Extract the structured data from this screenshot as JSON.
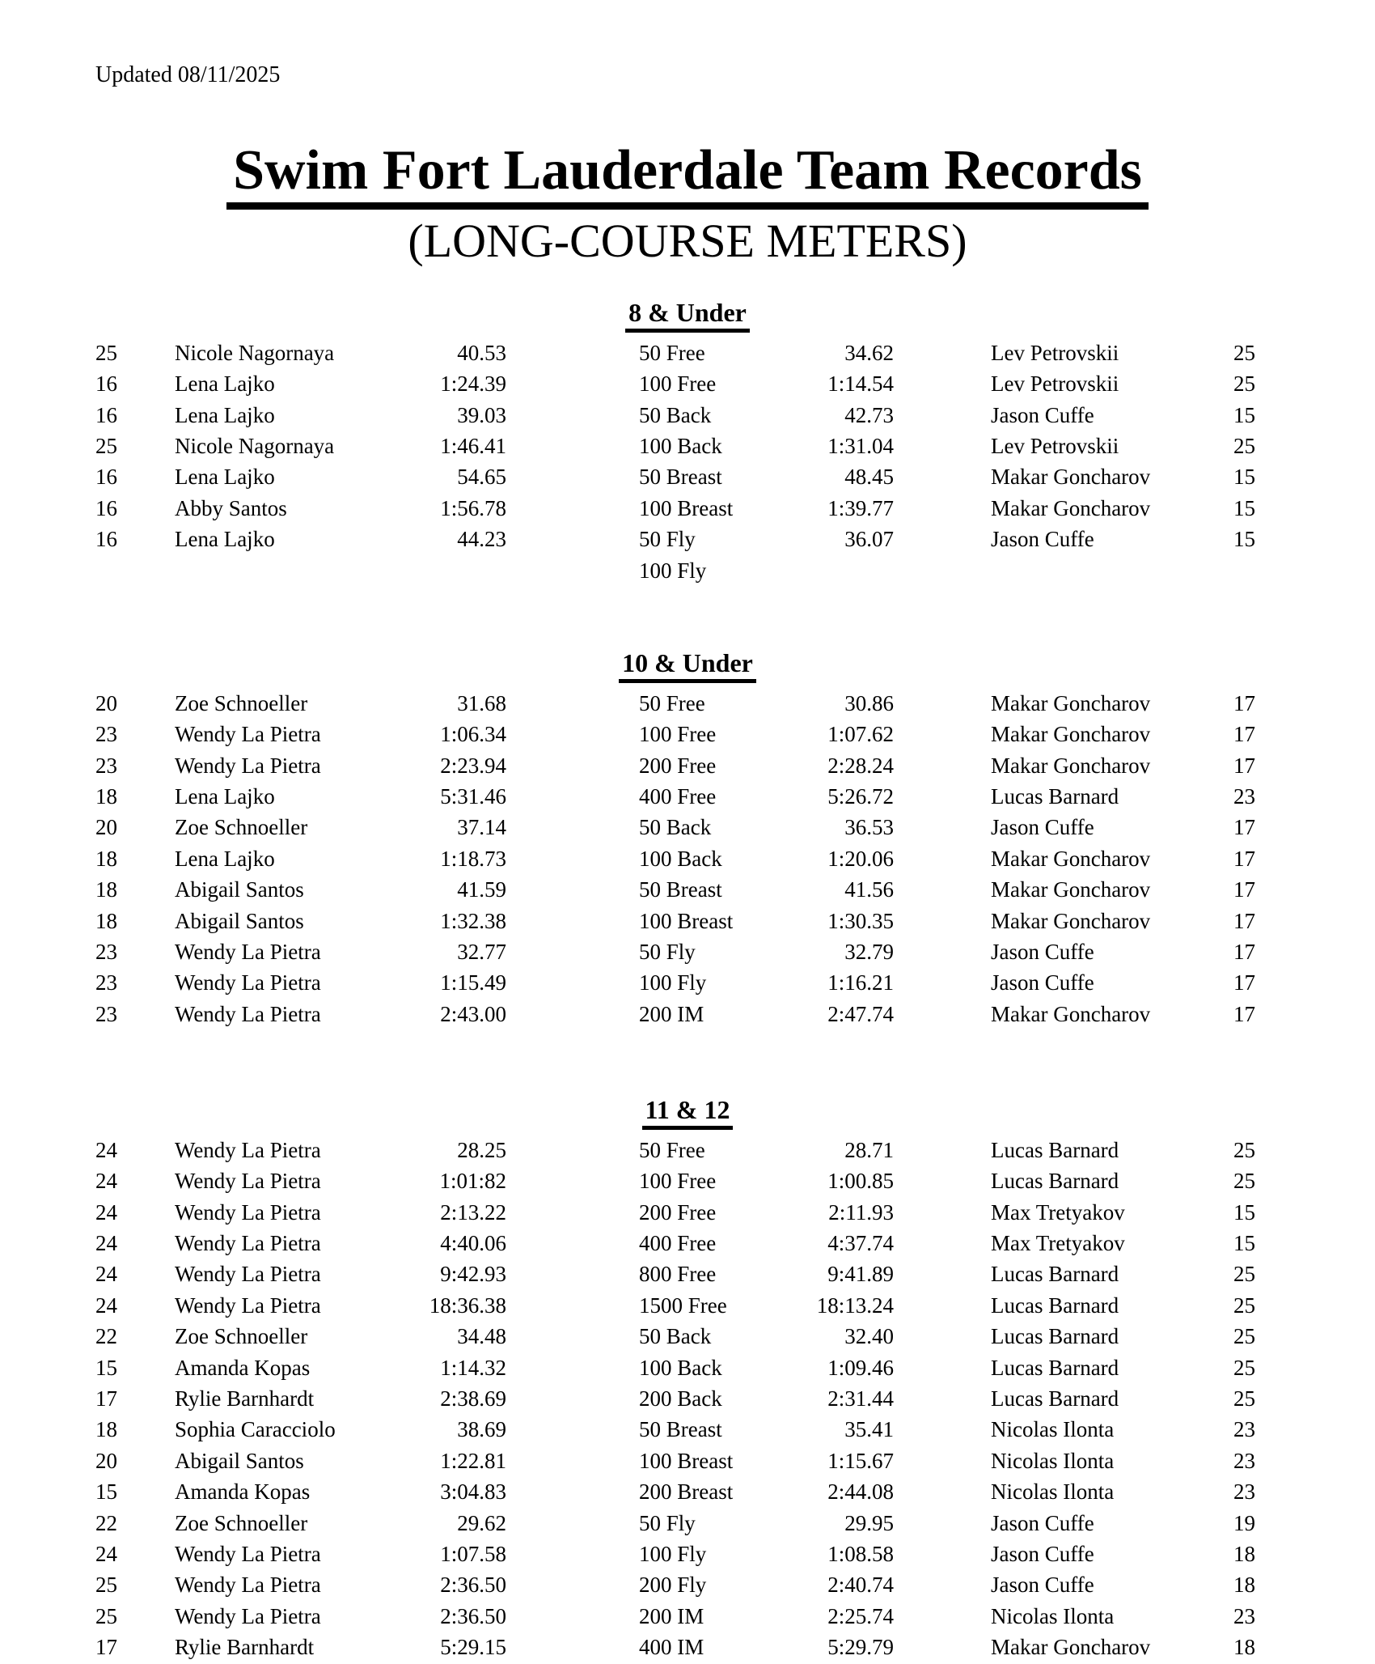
{
  "document": {
    "updated": "Updated 08/11/2025",
    "title": "Swim Fort Lauderdale Team Records",
    "subtitle": "(LONG-COURSE METERS)"
  },
  "column_roles": [
    "girl_record_year",
    "girl_name",
    "girl_time",
    "event",
    "boy_time",
    "boy_name",
    "boy_record_year"
  ],
  "sections": [
    {
      "heading": "8 & Under",
      "rows": [
        [
          "25",
          "Nicole Nagornaya",
          "40.53",
          "50 Free",
          "34.62",
          "Lev Petrovskii",
          "25"
        ],
        [
          "16",
          "Lena Lajko",
          "1:24.39",
          "100 Free",
          "1:14.54",
          "Lev Petrovskii",
          "25"
        ],
        [
          "16",
          "Lena Lajko",
          "39.03",
          "50 Back",
          "42.73",
          "Jason Cuffe",
          "15"
        ],
        [
          "25",
          "Nicole Nagornaya",
          "1:46.41",
          "100 Back",
          "1:31.04",
          "Lev Petrovskii",
          "25"
        ],
        [
          "16",
          "Lena Lajko",
          "54.65",
          "50 Breast",
          "48.45",
          "Makar Goncharov",
          "15"
        ],
        [
          "16",
          "Abby Santos",
          "1:56.78",
          "100 Breast",
          "1:39.77",
          "Makar Goncharov",
          "15"
        ],
        [
          "16",
          "Lena Lajko",
          "44.23",
          "50 Fly",
          "36.07",
          "Jason Cuffe",
          "15"
        ],
        [
          "",
          "",
          "",
          "100 Fly",
          "",
          "",
          ""
        ]
      ]
    },
    {
      "heading": "10 & Under",
      "rows": [
        [
          "20",
          "Zoe Schnoeller",
          "31.68",
          "50 Free",
          "30.86",
          "Makar Goncharov",
          "17"
        ],
        [
          "23",
          "Wendy La Pietra",
          "1:06.34",
          "100 Free",
          "1:07.62",
          "Makar Goncharov",
          "17"
        ],
        [
          "23",
          "Wendy La Pietra",
          "2:23.94",
          "200 Free",
          "2:28.24",
          "Makar Goncharov",
          "17"
        ],
        [
          "18",
          "Lena Lajko",
          "5:31.46",
          "400 Free",
          "5:26.72",
          "Lucas Barnard",
          "23"
        ],
        [
          "20",
          "Zoe Schnoeller",
          "37.14",
          "50 Back",
          "36.53",
          "Jason Cuffe",
          "17"
        ],
        [
          "18",
          "Lena Lajko",
          "1:18.73",
          "100 Back",
          "1:20.06",
          "Makar Goncharov",
          "17"
        ],
        [
          "18",
          "Abigail Santos",
          "41.59",
          "50 Breast",
          "41.56",
          "Makar Goncharov",
          "17"
        ],
        [
          "18",
          "Abigail Santos",
          "1:32.38",
          "100 Breast",
          "1:30.35",
          "Makar Goncharov",
          "17"
        ],
        [
          "23",
          "Wendy La Pietra",
          "32.77",
          "50 Fly",
          "32.79",
          "Jason Cuffe",
          "17"
        ],
        [
          "23",
          "Wendy La Pietra",
          "1:15.49",
          "100 Fly",
          "1:16.21",
          "Jason Cuffe",
          "17"
        ],
        [
          "23",
          "Wendy La Pietra",
          "2:43.00",
          "200 IM",
          "2:47.74",
          "Makar Goncharov",
          "17"
        ]
      ]
    },
    {
      "heading": "11 & 12",
      "rows": [
        [
          "24",
          "Wendy La Pietra",
          "28.25",
          "50 Free",
          "28.71",
          "Lucas Barnard",
          "25"
        ],
        [
          "24",
          "Wendy La Pietra",
          "1:01:82",
          "100 Free",
          "1:00.85",
          "Lucas Barnard",
          "25"
        ],
        [
          "24",
          "Wendy La Pietra",
          "2:13.22",
          "200 Free",
          "2:11.93",
          "Max Tretyakov",
          "15"
        ],
        [
          "24",
          "Wendy La Pietra",
          "4:40.06",
          "400 Free",
          "4:37.74",
          "Max Tretyakov",
          "15"
        ],
        [
          "24",
          "Wendy La Pietra",
          "9:42.93",
          "800 Free",
          "9:41.89",
          "Lucas Barnard",
          "25"
        ],
        [
          "24",
          "Wendy La Pietra",
          "18:36.38",
          "1500 Free",
          "18:13.24",
          "Lucas Barnard",
          "25"
        ],
        [
          "22",
          "Zoe Schnoeller",
          "34.48",
          "50 Back",
          "32.40",
          "Lucas Barnard",
          "25"
        ],
        [
          "15",
          "Amanda Kopas",
          "1:14.32",
          "100 Back",
          "1:09.46",
          "Lucas Barnard",
          "25"
        ],
        [
          "17",
          "Rylie Barnhardt",
          "2:38.69",
          "200 Back",
          "2:31.44",
          "Lucas Barnard",
          "25"
        ],
        [
          "18",
          "Sophia Caracciolo",
          "38.69",
          "50 Breast",
          "35.41",
          "Nicolas Ilonta",
          "23"
        ],
        [
          "20",
          "Abigail Santos",
          "1:22.81",
          "100 Breast",
          "1:15.67",
          "Nicolas Ilonta",
          "23"
        ],
        [
          "15",
          "Amanda Kopas",
          "3:04.83",
          "200 Breast",
          "2:44.08",
          "Nicolas Ilonta",
          "23"
        ],
        [
          "22",
          "Zoe Schnoeller",
          "29.62",
          "50 Fly",
          "29.95",
          "Jason Cuffe",
          "19"
        ],
        [
          "24",
          "Wendy La Pietra",
          "1:07.58",
          "100 Fly",
          "1:08.58",
          "Jason Cuffe",
          "18"
        ],
        [
          "25",
          "Wendy La Pietra",
          "2:36.50",
          "200 Fly",
          "2:40.74",
          "Jason Cuffe",
          "18"
        ],
        [
          "25",
          "Wendy La Pietra",
          "2:36.50",
          "200 IM",
          "2:25.74",
          "Nicolas Ilonta",
          "23"
        ],
        [
          "17",
          "Rylie Barnhardt",
          "5:29.15",
          "400 IM",
          "5:29.79",
          "Makar Goncharov",
          "18"
        ]
      ]
    }
  ]
}
